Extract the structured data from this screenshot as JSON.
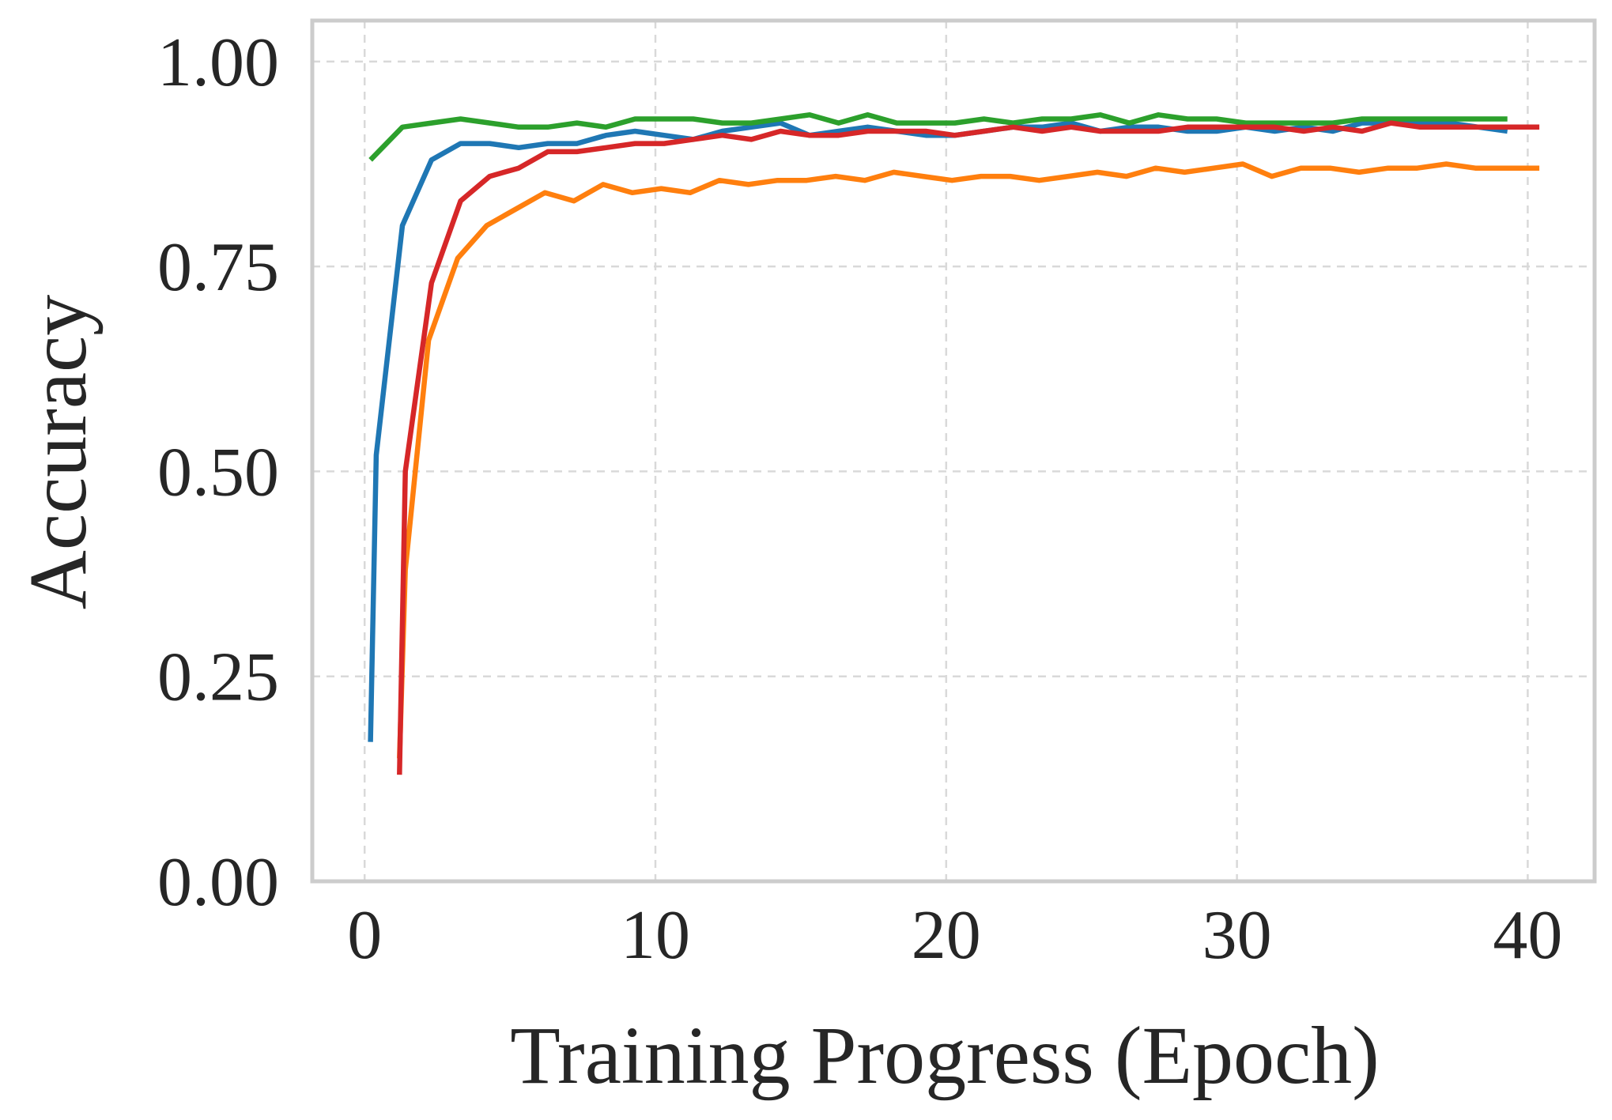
{
  "chart_data": {
    "type": "line",
    "title": "",
    "xlabel": "Training Progress (Epoch)",
    "ylabel": "Accuracy",
    "xlim": [
      -1.8,
      42.3
    ],
    "ylim": [
      0.0,
      1.05
    ],
    "xticks": [
      0,
      10,
      20,
      30,
      40
    ],
    "xtick_labels": [
      "0",
      "10",
      "20",
      "30",
      "40"
    ],
    "yticks": [
      0.0,
      0.25,
      0.5,
      0.75,
      1.0
    ],
    "ytick_labels": [
      "0.00",
      "0.25",
      "0.50",
      "0.75",
      "1.00"
    ],
    "grid": true,
    "legend": false,
    "series": [
      {
        "color": "#1f77b4",
        "x": [
          0.2,
          0.4,
          1.3,
          2.3,
          3.3,
          4.3,
          5.3,
          6.3,
          7.3,
          8.3,
          9.3,
          10.3,
          11.3,
          12.3,
          13.3,
          14.3,
          15.3,
          16.3,
          17.3,
          18.3,
          19.3,
          20.3,
          21.3,
          22.3,
          23.3,
          24.3,
          25.3,
          26.3,
          27.3,
          28.3,
          29.3,
          30.3,
          31.3,
          32.3,
          33.3,
          34.3,
          35.3,
          36.3,
          37.3,
          38.3,
          39.3
        ],
        "y": [
          0.17,
          0.52,
          0.8,
          0.88,
          0.9,
          0.9,
          0.895,
          0.9,
          0.9,
          0.91,
          0.915,
          0.91,
          0.905,
          0.915,
          0.92,
          0.925,
          0.91,
          0.915,
          0.92,
          0.915,
          0.91,
          0.91,
          0.915,
          0.92,
          0.92,
          0.925,
          0.915,
          0.92,
          0.92,
          0.915,
          0.915,
          0.92,
          0.915,
          0.92,
          0.915,
          0.925,
          0.925,
          0.925,
          0.925,
          0.92,
          0.915
        ]
      },
      {
        "color": "#ff7f0e",
        "x": [
          1.2,
          1.4,
          2.2,
          3.2,
          4.2,
          5.2,
          6.2,
          7.2,
          8.2,
          9.2,
          10.2,
          11.2,
          12.2,
          13.2,
          14.2,
          15.2,
          16.2,
          17.2,
          18.2,
          19.2,
          20.2,
          21.2,
          22.2,
          23.2,
          24.2,
          25.2,
          26.2,
          27.2,
          28.2,
          29.2,
          30.2,
          31.2,
          32.2,
          33.2,
          34.2,
          35.2,
          36.2,
          37.2,
          38.2,
          39.2,
          40.4
        ],
        "y": [
          0.15,
          0.38,
          0.66,
          0.76,
          0.8,
          0.82,
          0.84,
          0.83,
          0.85,
          0.84,
          0.845,
          0.84,
          0.855,
          0.85,
          0.855,
          0.855,
          0.86,
          0.855,
          0.865,
          0.86,
          0.855,
          0.86,
          0.86,
          0.855,
          0.86,
          0.865,
          0.86,
          0.87,
          0.865,
          0.87,
          0.875,
          0.86,
          0.87,
          0.87,
          0.865,
          0.87,
          0.87,
          0.875,
          0.87,
          0.87,
          0.87
        ]
      },
      {
        "color": "#2ca02c",
        "x": [
          0.2,
          1.3,
          2.3,
          3.3,
          4.3,
          5.3,
          6.3,
          7.3,
          8.3,
          9.3,
          10.3,
          11.3,
          12.3,
          13.3,
          14.3,
          15.3,
          16.3,
          17.3,
          18.3,
          19.3,
          20.3,
          21.3,
          22.3,
          23.3,
          24.3,
          25.3,
          26.3,
          27.3,
          28.3,
          29.3,
          30.3,
          31.3,
          32.3,
          33.3,
          34.3,
          35.3,
          36.3,
          37.3,
          38.3,
          39.3
        ],
        "y": [
          0.88,
          0.92,
          0.925,
          0.93,
          0.925,
          0.92,
          0.92,
          0.925,
          0.92,
          0.93,
          0.93,
          0.93,
          0.925,
          0.925,
          0.93,
          0.935,
          0.925,
          0.935,
          0.925,
          0.925,
          0.925,
          0.93,
          0.925,
          0.93,
          0.93,
          0.935,
          0.925,
          0.935,
          0.93,
          0.93,
          0.925,
          0.925,
          0.925,
          0.925,
          0.93,
          0.93,
          0.93,
          0.93,
          0.93,
          0.93
        ]
      },
      {
        "color": "#d62728",
        "x": [
          1.2,
          1.4,
          2.3,
          3.3,
          4.3,
          5.3,
          6.3,
          7.3,
          8.3,
          9.3,
          10.3,
          11.3,
          12.3,
          13.3,
          14.3,
          15.3,
          16.3,
          17.3,
          18.3,
          19.3,
          20.3,
          21.3,
          22.3,
          23.3,
          24.3,
          25.3,
          26.3,
          27.3,
          28.3,
          29.3,
          30.3,
          31.3,
          32.3,
          33.3,
          34.3,
          35.3,
          36.3,
          37.3,
          38.3,
          39.3,
          40.4
        ],
        "y": [
          0.13,
          0.5,
          0.73,
          0.83,
          0.86,
          0.87,
          0.89,
          0.89,
          0.895,
          0.9,
          0.9,
          0.905,
          0.91,
          0.905,
          0.915,
          0.91,
          0.91,
          0.915,
          0.915,
          0.915,
          0.91,
          0.915,
          0.92,
          0.915,
          0.92,
          0.915,
          0.915,
          0.915,
          0.92,
          0.92,
          0.92,
          0.92,
          0.915,
          0.92,
          0.915,
          0.925,
          0.92,
          0.92,
          0.92,
          0.92,
          0.92
        ]
      }
    ]
  }
}
